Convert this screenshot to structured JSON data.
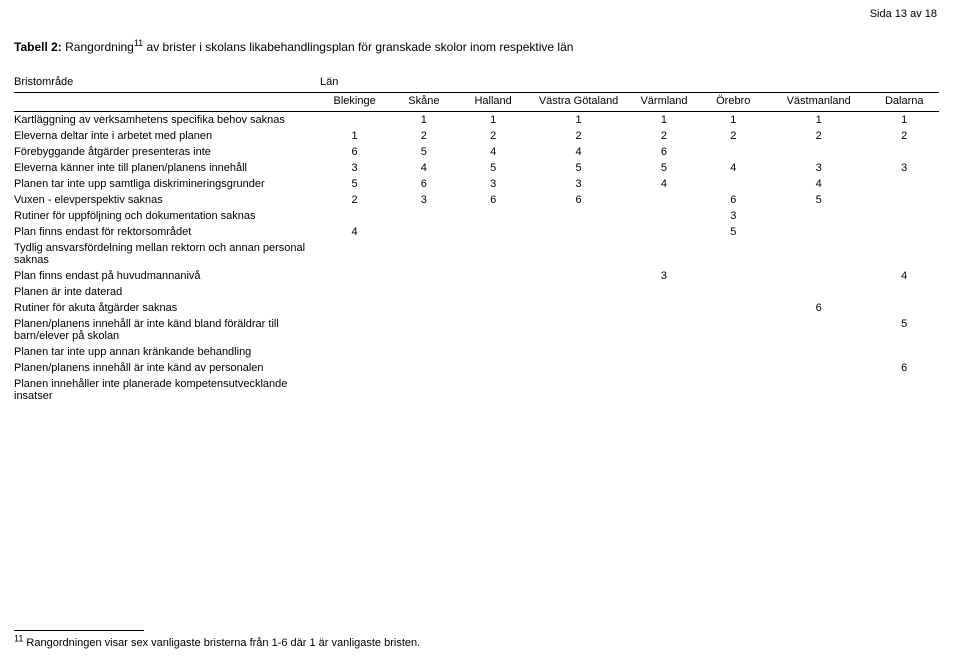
{
  "page_number": "Sida 13 av 18",
  "title_bold": "Tabell 2: ",
  "title_rest1": "Rangordning",
  "title_sup": "11",
  "title_rest2": " av brister i skolans likabehandlingsplan för granskade skolor inom respektive län",
  "column_group_label": "Län",
  "row_header": "Bristområde",
  "cols": [
    "Blekinge",
    "Skåne",
    "Halland",
    "Västra Götaland",
    "Värmland",
    "Örebro",
    "Västmanland",
    "Dalarna"
  ],
  "rows": [
    {
      "label": "Kartläggning av verksamhetens specifika behov saknas",
      "v": [
        "",
        "1",
        "1",
        "1",
        "1",
        "1",
        "1",
        "1"
      ]
    },
    {
      "label": "Eleverna deltar inte i arbetet med planen",
      "v": [
        "1",
        "2",
        "2",
        "2",
        "2",
        "2",
        "2",
        "2"
      ]
    },
    {
      "label": "Förebyggande åtgärder presenteras inte",
      "v": [
        "6",
        "5",
        "4",
        "4",
        "6",
        "",
        "",
        ""
      ]
    },
    {
      "label": "Eleverna känner inte till planen/planens innehåll",
      "v": [
        "3",
        "4",
        "5",
        "5",
        "5",
        "4",
        "3",
        "3"
      ]
    },
    {
      "label": "Planen tar inte upp samtliga diskrimineringsgrunder",
      "v": [
        "5",
        "6",
        "3",
        "3",
        "4",
        "",
        "4",
        ""
      ]
    },
    {
      "label": "Vuxen - elevperspektiv saknas",
      "v": [
        "2",
        "3",
        "6",
        "6",
        "",
        "6",
        "5",
        ""
      ]
    },
    {
      "label": "Rutiner för uppföljning och dokumentation saknas",
      "v": [
        "",
        "",
        "",
        "",
        "",
        "3",
        "",
        ""
      ]
    },
    {
      "label": "Plan finns endast för rektorsområdet",
      "v": [
        "4",
        "",
        "",
        "",
        "",
        "5",
        "",
        ""
      ]
    },
    {
      "label": "Tydlig ansvarsfördelning mellan rektorn och annan personal saknas",
      "v": [
        "",
        "",
        "",
        "",
        "",
        "",
        "",
        ""
      ]
    },
    {
      "label": "Plan finns endast på huvudmannanivå",
      "v": [
        "",
        "",
        "",
        "",
        "3",
        "",
        "",
        "4"
      ]
    },
    {
      "label": "Planen är inte daterad",
      "v": [
        "",
        "",
        "",
        "",
        "",
        "",
        "",
        ""
      ]
    },
    {
      "label": "Rutiner för akuta åtgärder saknas",
      "v": [
        "",
        "",
        "",
        "",
        "",
        "",
        "6",
        ""
      ]
    },
    {
      "label": "Planen/planens innehåll är inte känd bland föräldrar till barn/elever på skolan",
      "v": [
        "",
        "",
        "",
        "",
        "",
        "",
        "",
        "5"
      ]
    },
    {
      "label": "Planen tar inte upp annan kränkande behandling",
      "v": [
        "",
        "",
        "",
        "",
        "",
        "",
        "",
        ""
      ]
    },
    {
      "label": "Planen/planens innehåll är inte känd av personalen",
      "v": [
        "",
        "",
        "",
        "",
        "",
        "",
        "",
        "6"
      ]
    },
    {
      "label": "Planen innehåller inte planerade kompetensutvecklande insatser",
      "v": [
        "",
        "",
        "",
        "",
        "",
        "",
        "",
        ""
      ]
    }
  ],
  "footnote_marker": "11",
  "footnote_text": " Rangordningen visar sex vanligaste bristerna från 1-6 där 1 är vanligaste bristen."
}
